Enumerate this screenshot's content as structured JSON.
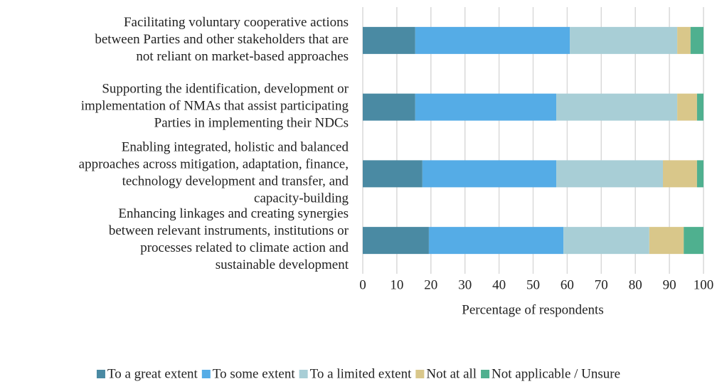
{
  "chart_data": {
    "type": "stacked-barh",
    "categories": [
      "Facilitating voluntary cooperative actions\nbetween Parties and other stakeholders that are\nnot reliant on market-based approaches",
      "Supporting the identification, development or\nimplementation of NMAs that assist participating\nParties in implementing their NDCs",
      "Enabling integrated, holistic and balanced\napproaches across mitigation, adaptation, finance,\ntechnology development and transfer, and\ncapacity-building",
      "Enhancing linkages and creating synergies\nbetween relevant instruments, institutions or\nprocesses related to climate action and\nsustainable development"
    ],
    "series": [
      {
        "name": "To a great extent",
        "color": "#4a8aa3",
        "values": [
          15.4,
          15.4,
          17.5,
          19.4
        ]
      },
      {
        "name": "To some extent",
        "color": "#55ace6",
        "values": [
          45.4,
          41.4,
          39.3,
          39.5
        ]
      },
      {
        "name": "To a limited extent",
        "color": "#a8ced6",
        "values": [
          31.5,
          35.5,
          31.3,
          25.2
        ]
      },
      {
        "name": "Not at all",
        "color": "#d9c78a",
        "values": [
          3.9,
          5.8,
          10.0,
          10.1
        ]
      },
      {
        "name": "Not applicable / Unsure",
        "color": "#4fb08f",
        "values": [
          3.8,
          1.9,
          1.9,
          5.8
        ]
      }
    ],
    "xlabel": "Percentage of respondents",
    "xlim": [
      0,
      100
    ],
    "xticks": [
      0,
      10,
      20,
      30,
      40,
      50,
      60,
      70,
      80,
      90,
      100
    ],
    "grid": true,
    "legend": "bottom"
  }
}
